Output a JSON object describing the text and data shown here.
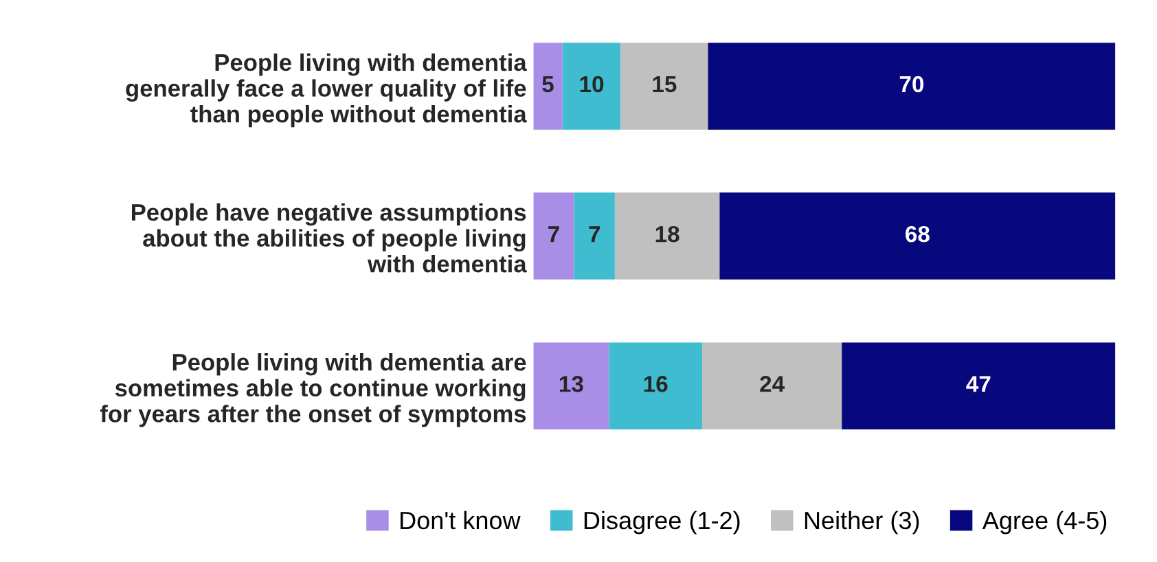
{
  "chart_data": {
    "type": "bar",
    "orientation": "horizontal",
    "stacked": true,
    "data_labels": true,
    "legend": "bottom",
    "grid": false,
    "tick_labels": "y",
    "categories": [
      "People living with dementia\ngenerally face a lower quality of life\nthan people without dementia",
      "People have negative assumptions\nabout the abilities of people living\nwith dementia",
      "People living with dementia are\nsometimes able to continue working\nfor years after the onset of symptoms"
    ],
    "series": [
      {
        "name": "Don't know",
        "color": "#a98ee8",
        "values": [
          5,
          7,
          13
        ]
      },
      {
        "name": "Disagree (1-2)",
        "color": "#3fbccf",
        "values": [
          10,
          7,
          16
        ]
      },
      {
        "name": "Neither (3)",
        "color": "#c0c0c0",
        "values": [
          15,
          18,
          24
        ]
      },
      {
        "name": "Agree (4-5)",
        "color": "#08087e",
        "values": [
          70,
          68,
          47
        ]
      }
    ]
  }
}
